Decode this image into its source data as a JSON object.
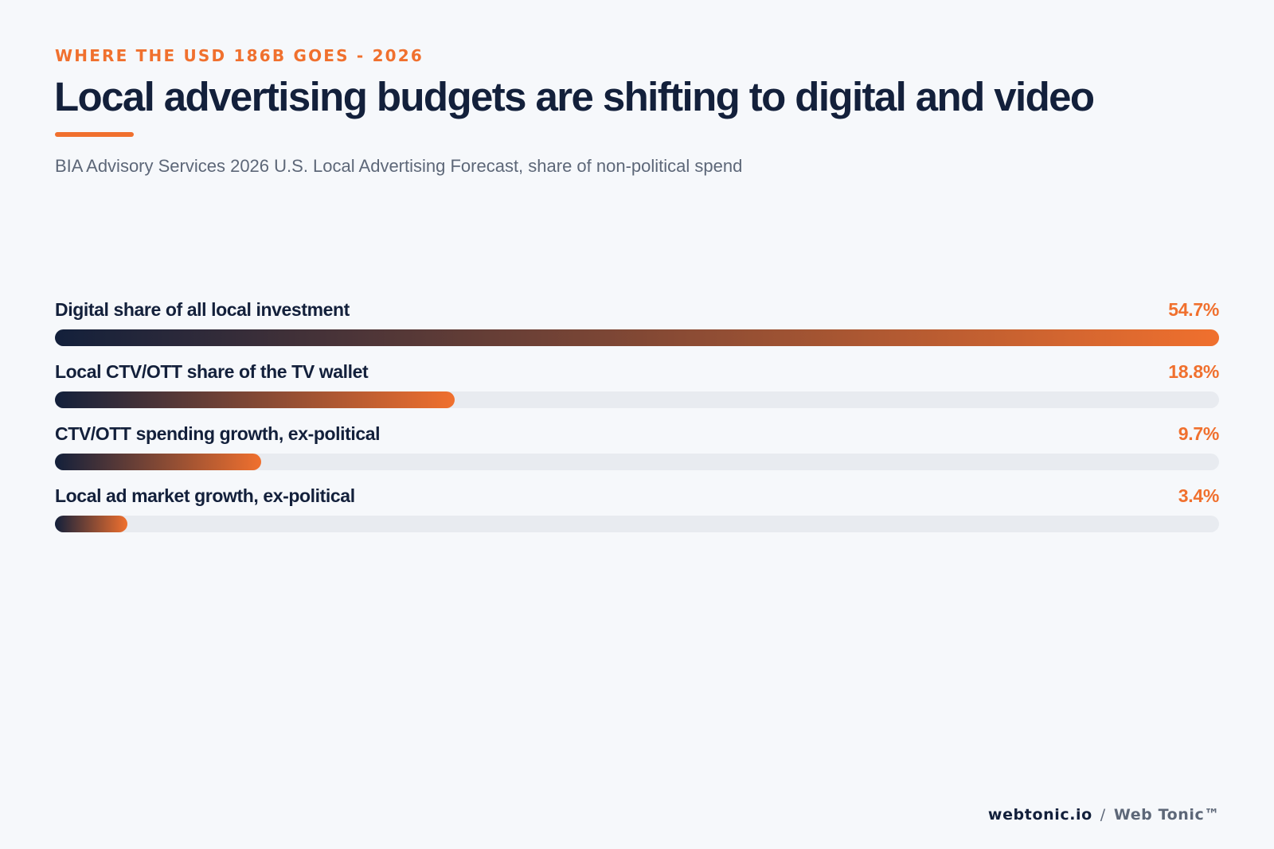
{
  "eyebrow": "WHERE THE USD 186B GOES - 2026",
  "title": "Local advertising budgets are shifting to digital and video",
  "subtitle": "BIA Advisory Services 2026 U.S. Local Advertising Forecast, share of non-political spend",
  "footer": {
    "site": "webtonic.io",
    "separator": "/",
    "brand": "Web Tonic™"
  },
  "colors": {
    "accent": "#f0702e",
    "navy": "#13203b",
    "track": "#e8ebf0",
    "background": "#f6f8fb"
  },
  "chart_data": {
    "type": "bar",
    "orientation": "horizontal",
    "title": "Local advertising budgets are shifting to digital and video",
    "xlabel": "",
    "ylabel": "",
    "xlim": [
      0,
      54.7
    ],
    "grid": false,
    "categories": [
      "Digital share of all local investment",
      "Local CTV/OTT share of the TV wallet",
      "CTV/OTT spending growth, ex-political",
      "Local ad market growth, ex-political"
    ],
    "values": [
      54.7,
      18.8,
      9.7,
      3.4
    ],
    "value_labels": [
      "54.7%",
      "18.8%",
      "9.7%",
      "3.4%"
    ]
  }
}
